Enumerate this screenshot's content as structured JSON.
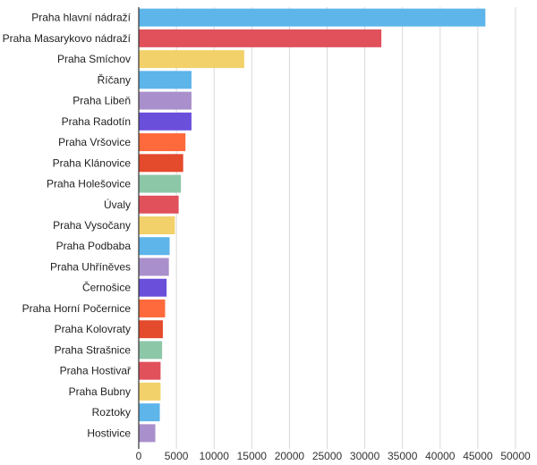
{
  "chart_data": {
    "type": "bar",
    "orientation": "horizontal",
    "categories": [
      "Praha hlavní nádraží",
      "Praha Masarykovo nádraží",
      "Praha Smíchov",
      "Říčany",
      "Praha Libeň",
      "Praha Radotín",
      "Praha Vršovice",
      "Praha Klánovice",
      "Praha Holešovice",
      "Úvaly",
      "Praha Vysočany",
      "Praha Podbaba",
      "Praha Uhříněves",
      "Černošice",
      "Praha Horní Počernice",
      "Praha Kolovraty",
      "Praha Strašnice",
      "Praha Hostivař",
      "Praha Bubny",
      "Roztoky",
      "Hostivice"
    ],
    "values": [
      46000,
      32200,
      14000,
      7000,
      7000,
      7000,
      6200,
      5900,
      5600,
      5300,
      4800,
      4100,
      4000,
      3700,
      3500,
      3200,
      3100,
      2900,
      2900,
      2800,
      2200
    ],
    "colors": [
      "#5DB5EA",
      "#E0515C",
      "#F2D16B",
      "#5DB5EA",
      "#A98FCB",
      "#6A4FDB",
      "#FF6A3C",
      "#E44A2C",
      "#8CC7A8",
      "#E0515C",
      "#F2D16B",
      "#5DB5EA",
      "#A98FCB",
      "#6A4FDB",
      "#FF6A3C",
      "#E44A2C",
      "#8CC7A8",
      "#E0515C",
      "#F2D16B",
      "#5DB5EA",
      "#A98FCB"
    ],
    "xticks": [
      0,
      5000,
      10000,
      15000,
      20000,
      25000,
      30000,
      35000,
      40000,
      45000,
      50000
    ],
    "xlim": [
      0,
      50000
    ],
    "grid": true,
    "title": "",
    "xlabel": "",
    "ylabel": ""
  }
}
